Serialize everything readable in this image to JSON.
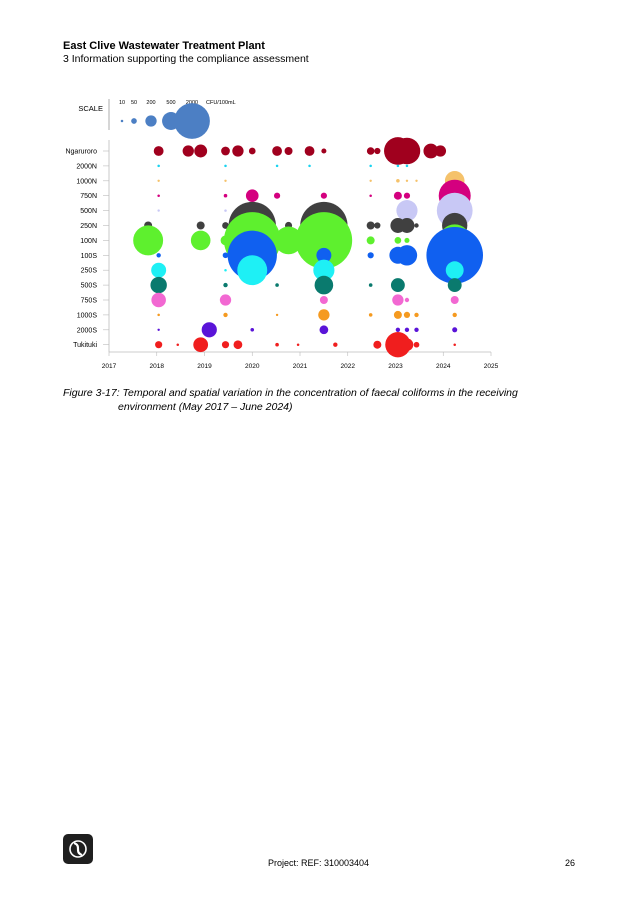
{
  "header": {
    "title": "East Clive Wastewater Treatment Plant",
    "subtitle": "3 Information supporting the compliance assessment"
  },
  "chart_data": {
    "type": "scatter",
    "title": "",
    "xlabel": "",
    "ylabel": "",
    "xlim": [
      2017,
      2025
    ],
    "x_ticks": [
      "2017",
      "2018",
      "2019",
      "2020",
      "2021",
      "2022",
      "2023",
      "2024",
      "2025"
    ],
    "categories": [
      "Ngaruroro",
      "2000N",
      "1000N",
      "750N",
      "500N",
      "250N",
      "100N",
      "100S",
      "250S",
      "500S",
      "750S",
      "1000S",
      "2000S",
      "Tukituki"
    ],
    "category_colors": [
      "#a0001e",
      "#19d3f0",
      "#f5c26b",
      "#d4007f",
      "#c8c8f5",
      "#404040",
      "#5ef02e",
      "#1060f0",
      "#1ef0f5",
      "#0a7a6e",
      "#f268d2",
      "#f59a20",
      "#5a14d8",
      "#f01e1e"
    ],
    "scale": {
      "label": "SCALE",
      "unit": "CFU/100mL",
      "values": [
        10,
        50,
        200,
        500,
        2000
      ],
      "value_labels": [
        "10",
        "50",
        "200",
        "500",
        "2000"
      ],
      "color": "#4c7fc4"
    },
    "series": [
      {
        "values": [
          [
            2018.04,
            150
          ],
          [
            2018.66,
            200
          ],
          [
            2018.92,
            260
          ],
          [
            2019.44,
            120
          ],
          [
            2019.7,
            200
          ],
          [
            2020.0,
            70
          ],
          [
            2020.52,
            150
          ],
          [
            2020.76,
            100
          ],
          [
            2021.2,
            150
          ],
          [
            2021.5,
            40
          ],
          [
            2022.48,
            90
          ],
          [
            2022.62,
            60
          ],
          [
            2023.05,
            1200
          ],
          [
            2023.24,
            1100
          ],
          [
            2023.44,
            10
          ],
          [
            2023.74,
            340
          ],
          [
            2023.94,
            200
          ]
        ]
      },
      {
        "values": [
          [
            2018.04,
            10
          ],
          [
            2019.44,
            10
          ],
          [
            2020.52,
            10
          ],
          [
            2021.2,
            10
          ],
          [
            2022.48,
            10
          ],
          [
            2023.05,
            10
          ],
          [
            2023.24,
            10
          ]
        ]
      },
      {
        "values": [
          [
            2018.04,
            3
          ],
          [
            2019.44,
            3
          ],
          [
            2022.48,
            2
          ],
          [
            2023.05,
            20
          ],
          [
            2023.24,
            8
          ],
          [
            2023.44,
            5
          ],
          [
            2024.24,
            600
          ]
        ]
      },
      {
        "values": [
          [
            2018.04,
            10
          ],
          [
            2019.44,
            20
          ],
          [
            2020.0,
            250
          ],
          [
            2020.52,
            60
          ],
          [
            2021.5,
            60
          ],
          [
            2022.48,
            10
          ],
          [
            2023.05,
            100
          ],
          [
            2023.24,
            60
          ],
          [
            2024.24,
            1600
          ]
        ]
      },
      {
        "values": [
          [
            2018.04,
            3
          ],
          [
            2019.44,
            10
          ],
          [
            2020.0,
            50
          ],
          [
            2021.5,
            200
          ],
          [
            2023.24,
            700
          ],
          [
            2024.24,
            2000
          ]
        ]
      },
      {
        "values": [
          [
            2017.82,
            100
          ],
          [
            2018.92,
            100
          ],
          [
            2019.44,
            70
          ],
          [
            2020.0,
            3500
          ],
          [
            2020.76,
            80
          ],
          [
            2021.2,
            60
          ],
          [
            2021.5,
            3500
          ],
          [
            2021.74,
            500
          ],
          [
            2022.48,
            100
          ],
          [
            2022.62,
            60
          ],
          [
            2023.05,
            350
          ],
          [
            2023.24,
            350
          ],
          [
            2023.44,
            30
          ],
          [
            2024.24,
            1000
          ]
        ]
      },
      {
        "values": [
          [
            2017.82,
            1400
          ],
          [
            2018.92,
            600
          ],
          [
            2019.44,
            150
          ],
          [
            2020.0,
            5000
          ],
          [
            2020.76,
            1200
          ],
          [
            2021.5,
            5000
          ],
          [
            2022.48,
            100
          ],
          [
            2023.05,
            70
          ],
          [
            2023.24,
            40
          ],
          [
            2024.24,
            1600
          ]
        ]
      },
      {
        "values": [
          [
            2018.04,
            30
          ],
          [
            2019.44,
            50
          ],
          [
            2020.0,
            3800
          ],
          [
            2021.5,
            350
          ],
          [
            2022.48,
            60
          ],
          [
            2023.05,
            450
          ],
          [
            2023.24,
            650
          ],
          [
            2024.24,
            5000
          ]
        ]
      },
      {
        "values": [
          [
            2018.04,
            350
          ],
          [
            2019.44,
            10
          ],
          [
            2020.0,
            1400
          ],
          [
            2021.5,
            700
          ],
          [
            2024.24,
            500
          ]
        ]
      },
      {
        "values": [
          [
            2018.04,
            420
          ],
          [
            2019.44,
            30
          ],
          [
            2020.52,
            20
          ],
          [
            2021.5,
            540
          ],
          [
            2022.48,
            20
          ],
          [
            2023.05,
            300
          ],
          [
            2024.24,
            300
          ]
        ]
      },
      {
        "values": [
          [
            2018.04,
            330
          ],
          [
            2019.44,
            200
          ],
          [
            2021.5,
            100
          ],
          [
            2023.05,
            200
          ],
          [
            2023.24,
            30
          ],
          [
            2024.24,
            100
          ]
        ]
      },
      {
        "values": [
          [
            2018.04,
            10
          ],
          [
            2019.44,
            30
          ],
          [
            2020.52,
            5
          ],
          [
            2021.5,
            200
          ],
          [
            2022.48,
            20
          ],
          [
            2023.05,
            100
          ],
          [
            2023.24,
            60
          ],
          [
            2023.44,
            30
          ],
          [
            2024.24,
            30
          ]
        ]
      },
      {
        "values": [
          [
            2018.04,
            3
          ],
          [
            2019.1,
            360
          ],
          [
            2020.0,
            20
          ],
          [
            2021.5,
            120
          ],
          [
            2023.05,
            30
          ],
          [
            2023.24,
            30
          ],
          [
            2023.44,
            30
          ],
          [
            2024.24,
            40
          ]
        ]
      },
      {
        "values": [
          [
            2018.04,
            80
          ],
          [
            2018.44,
            10
          ],
          [
            2018.92,
            340
          ],
          [
            2019.44,
            80
          ],
          [
            2019.7,
            120
          ],
          [
            2020.52,
            20
          ],
          [
            2020.96,
            10
          ],
          [
            2021.74,
            30
          ],
          [
            2022.62,
            100
          ],
          [
            2023.05,
            1000
          ],
          [
            2023.24,
            250
          ],
          [
            2023.44,
            50
          ],
          [
            2024.24,
            10
          ]
        ]
      }
    ]
  },
  "caption": {
    "line1": "Figure 3-17: Temporal and spatial variation in the concentration of faecal coliforms in the receiving",
    "line2": "environment (May 2017 – June 2024)"
  },
  "footer": {
    "project": "Project: REF: 310003404",
    "page": "26"
  }
}
